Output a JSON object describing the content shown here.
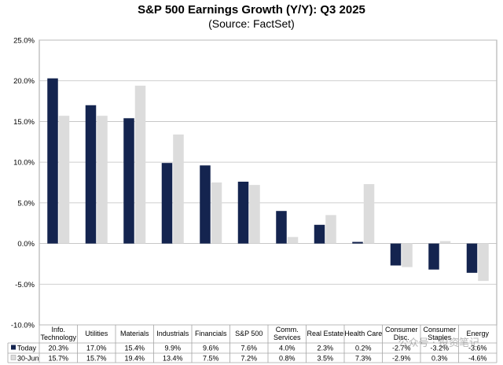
{
  "chart_data": {
    "type": "bar",
    "title": "S&P 500 Earnings Growth (Y/Y): Q3 2025",
    "subtitle": "(Source: FactSet)",
    "categories": [
      [
        "Info.",
        "Technology"
      ],
      [
        "Utilities"
      ],
      [
        "Materials"
      ],
      [
        "Industrials"
      ],
      [
        "Financials"
      ],
      [
        "S&P 500"
      ],
      [
        "Comm.",
        "Services"
      ],
      [
        "Real Estate"
      ],
      [
        "Health Care"
      ],
      [
        "Consumer",
        "Disc."
      ],
      [
        "Consumer",
        "Staples"
      ],
      [
        "Energy"
      ]
    ],
    "series": [
      {
        "name": "Today",
        "color": "#14244f",
        "values": [
          20.3,
          17.0,
          15.4,
          9.9,
          9.6,
          7.6,
          4.0,
          2.3,
          0.2,
          -2.7,
          -3.2,
          -3.6
        ],
        "labels": [
          "20.3%",
          "17.0%",
          "15.4%",
          "9.9%",
          "9.6%",
          "7.6%",
          "4.0%",
          "2.3%",
          "0.2%",
          "-2.7%",
          "-3.2%",
          "-3.6%"
        ]
      },
      {
        "name": "30-Jun",
        "color": "#dcdcdc",
        "values": [
          15.7,
          15.7,
          19.4,
          13.4,
          7.5,
          7.2,
          0.8,
          3.5,
          7.3,
          -2.9,
          0.3,
          -4.6
        ],
        "labels": [
          "15.7%",
          "15.7%",
          "19.4%",
          "13.4%",
          "7.5%",
          "7.2%",
          "0.8%",
          "3.5%",
          "7.3%",
          "-2.9%",
          "0.3%",
          "-4.6%"
        ]
      }
    ],
    "ylim": [
      -10,
      25
    ],
    "yticks": [
      -10,
      -5,
      0,
      5,
      10,
      15,
      20,
      25
    ],
    "ytick_labels": [
      "-10.0%",
      "-5.0%",
      "0.0%",
      "5.0%",
      "10.0%",
      "15.0%",
      "20.0%",
      "25.0%"
    ],
    "grid": true,
    "legend": "data-table"
  },
  "watermark": "公众号 · 投资笔记"
}
